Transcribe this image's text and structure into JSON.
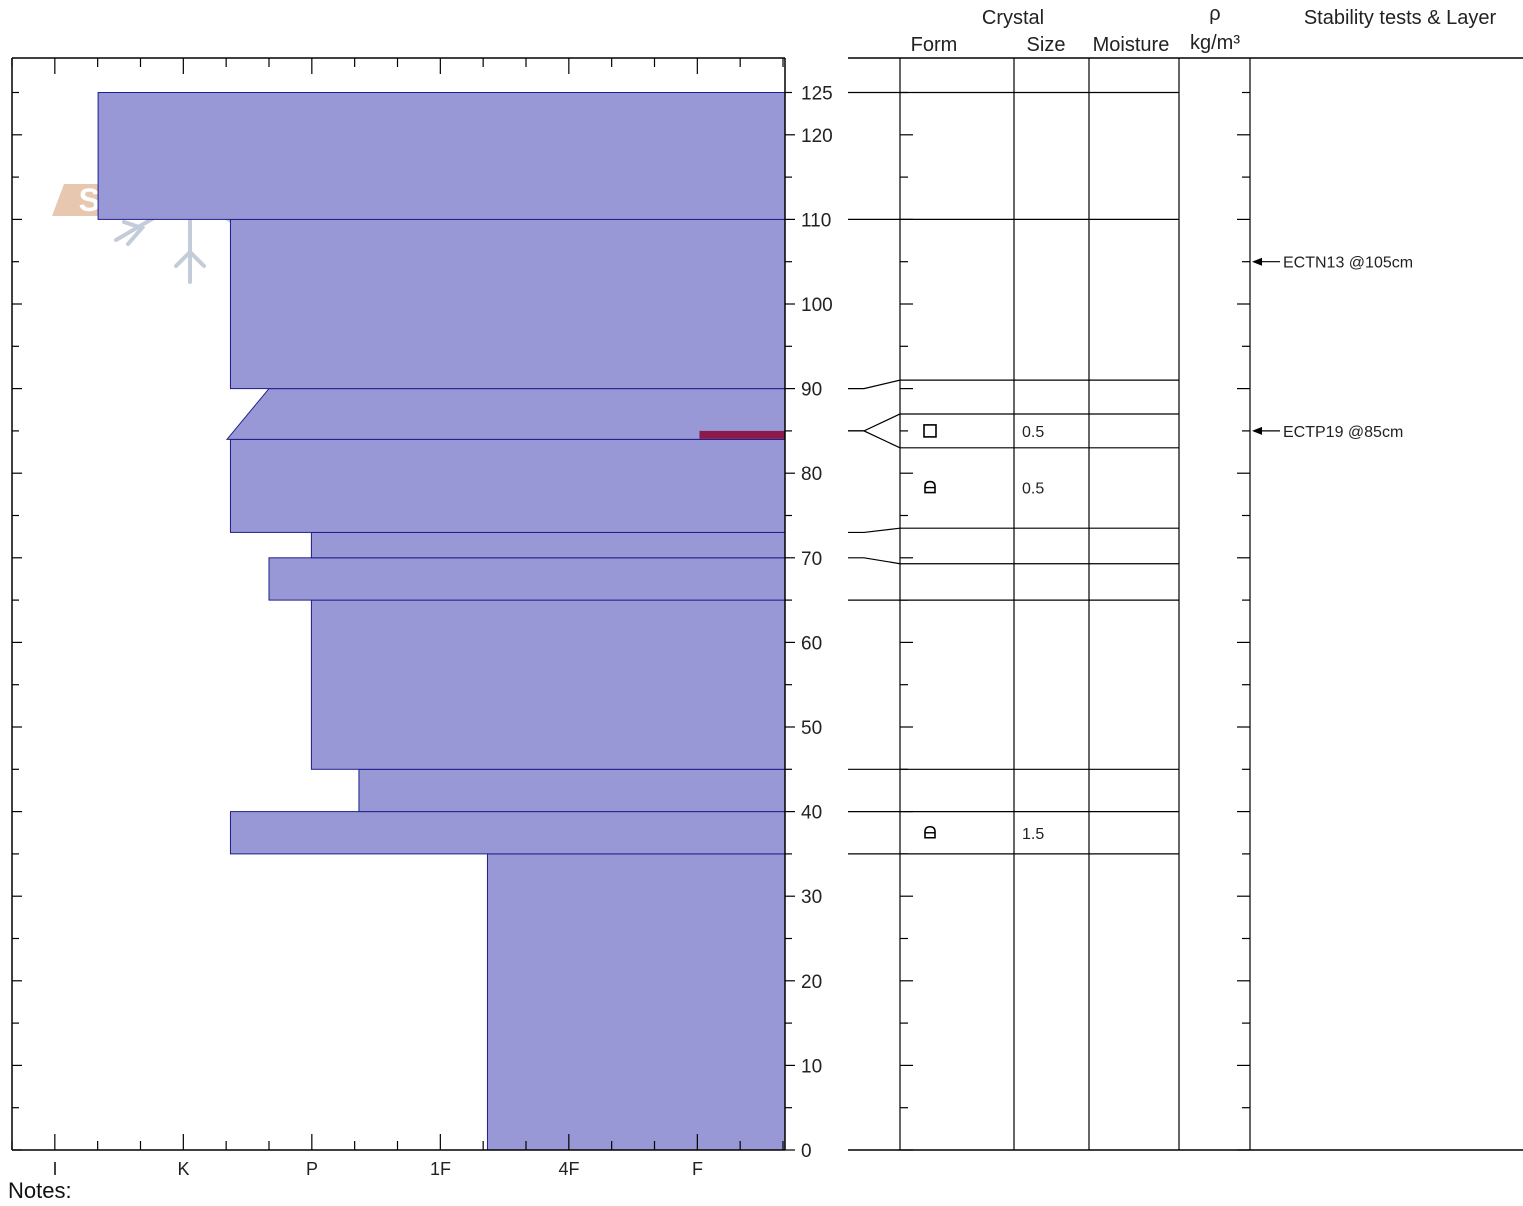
{
  "header": {
    "crystal": "Crystal",
    "form": "Form",
    "size": "Size",
    "moisture": "Moisture",
    "rho": "ρ",
    "density_unit": "kg/m³",
    "stability": "Stability tests & Layer"
  },
  "notes_label": "Notes:",
  "colors": {
    "layer_fill": "#9898d6",
    "layer_stroke": "#1e1e8c",
    "weak_layer": "#8a1a4a",
    "logo_text": "#e8c7b0",
    "logo_flake": "#c3ccd8"
  },
  "logo": {
    "text": "SNOW PILOT",
    "icon": "snowflake-icon"
  },
  "chart_data": {
    "type": "snow-profile",
    "hardness_scale": [
      "I",
      "K",
      "P",
      "1F",
      "4F",
      "F"
    ],
    "height_ticks": [
      0,
      10,
      20,
      30,
      40,
      50,
      60,
      70,
      80,
      90,
      100,
      110,
      120,
      125
    ],
    "height_range": [
      0,
      128
    ],
    "layers": [
      {
        "top": 35,
        "bottom": 0,
        "hardness_index": 3.7
      },
      {
        "top": 40,
        "bottom": 35,
        "hardness_index": 1.7
      },
      {
        "top": 45,
        "bottom": 40,
        "hardness_index": 2.7
      },
      {
        "top": 65,
        "bottom": 45,
        "hardness_index": 2.33
      },
      {
        "top": 70,
        "bottom": 65,
        "hardness_index": 2.0
      },
      {
        "top": 73,
        "bottom": 70,
        "hardness_index": 2.33
      },
      {
        "top": 84,
        "bottom": 73,
        "hardness_index": 1.7
      },
      {
        "top": 90,
        "bottom": 84,
        "hardness_index_top": 2.0,
        "hardness_index_bottom": 2.33,
        "slanted": true
      },
      {
        "top": 110,
        "bottom": 90,
        "hardness_index": 1.7
      },
      {
        "top": 125,
        "bottom": 110,
        "hardness_index": 0.67
      }
    ],
    "weak_layer_band": {
      "top": 85,
      "bottom": 84.3,
      "hardness_index": 0.67
    },
    "grid_lines": [
      125,
      110,
      91,
      87,
      83,
      73.5,
      69.3,
      65,
      45,
      40,
      35
    ],
    "layer_connectors": [
      {
        "chart_height": 90,
        "grid_line": 91
      },
      {
        "chart_height": 85,
        "grid_line": 87
      },
      {
        "chart_height": 85,
        "grid_line": 83
      },
      {
        "chart_height": 73,
        "grid_line": 73.5
      },
      {
        "chart_height": 70,
        "grid_line": 69.3
      },
      {
        "chart_height": 40,
        "grid_line": 40
      }
    ],
    "crystal_rows": [
      {
        "height": 85,
        "form_icon": "square-facet-icon",
        "size": "0.5"
      },
      {
        "height": 78.3,
        "form_icon": "rounded-facet-icon",
        "size": "0.5"
      },
      {
        "height": 37.5,
        "form_icon": "rounded-facet-icon",
        "size": "1.5"
      }
    ],
    "stability_tests": [
      {
        "height": 105,
        "label": "ECTN13 @105cm"
      },
      {
        "height": 85,
        "label": "ECTP19 @85cm"
      }
    ]
  }
}
